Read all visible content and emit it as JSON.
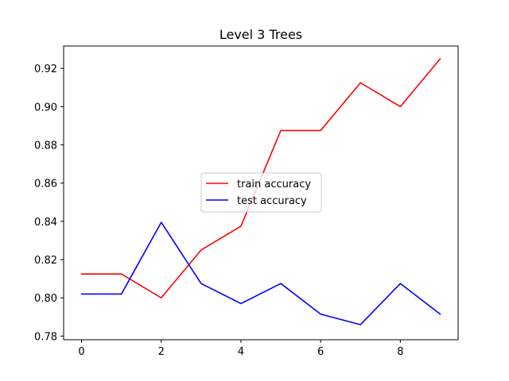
{
  "chart_data": {
    "type": "line",
    "title": "Level 3 Trees",
    "xlabel": "",
    "ylabel": "",
    "x": [
      0,
      1,
      2,
      3,
      4,
      5,
      6,
      7,
      8,
      9
    ],
    "xlim": [
      -0.45,
      9.45
    ],
    "ylim": [
      0.7781,
      0.9317
    ],
    "xticks": [
      0,
      2,
      4,
      6,
      8
    ],
    "xtick_labels": [
      "0",
      "2",
      "4",
      "6",
      "8"
    ],
    "yticks": [
      0.78,
      0.8,
      0.82,
      0.84,
      0.86,
      0.88,
      0.9,
      0.92
    ],
    "ytick_labels": [
      "0.78",
      "0.80",
      "0.82",
      "0.84",
      "0.86",
      "0.88",
      "0.90",
      "0.92"
    ],
    "grid": false,
    "legend_position": "center",
    "series": [
      {
        "name": "train accuracy",
        "color": "#ff0000",
        "values": [
          0.8125,
          0.8125,
          0.8,
          0.825,
          0.8375,
          0.8875,
          0.8875,
          0.9125,
          0.9,
          0.925
        ]
      },
      {
        "name": "test accuracy",
        "color": "#0000ff",
        "values": [
          0.802,
          0.802,
          0.8395,
          0.8075,
          0.797,
          0.8075,
          0.7915,
          0.786,
          0.8075,
          0.7915
        ]
      }
    ]
  }
}
